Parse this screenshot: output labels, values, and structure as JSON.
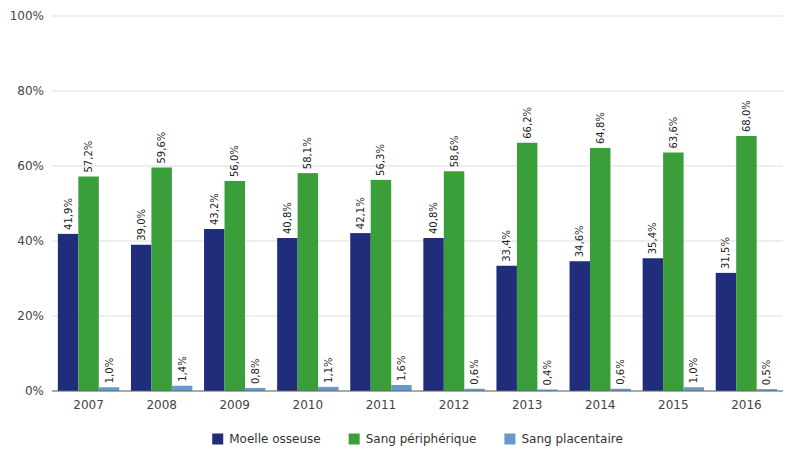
{
  "chart_data": {
    "type": "bar",
    "categories": [
      "2007",
      "2008",
      "2009",
      "2010",
      "2011",
      "2012",
      "2013",
      "2014",
      "2015",
      "2016"
    ],
    "series": [
      {
        "name": "Moelle osseuse",
        "color": "#1F2D7B",
        "values": [
          41.9,
          39.0,
          43.2,
          40.8,
          42.1,
          40.8,
          33.4,
          34.6,
          35.4,
          31.5
        ],
        "value_labels": [
          "41,9%",
          "39,0%",
          "43,2%",
          "40,8%",
          "42,1%",
          "40,8%",
          "33,4%",
          "34,6%",
          "35,4%",
          "31,5%"
        ]
      },
      {
        "name": "Sang périphérique",
        "color": "#3A9E3A",
        "values": [
          57.2,
          59.6,
          56.0,
          58.1,
          56.3,
          58.6,
          66.2,
          64.8,
          63.6,
          68.0
        ],
        "value_labels": [
          "57,2%",
          "59,6%",
          "56,0%",
          "58,1%",
          "56,3%",
          "58,6%",
          "66,2%",
          "64,8%",
          "63,6%",
          "68,0%"
        ]
      },
      {
        "name": "Sang placentaire",
        "color": "#6699CC",
        "values": [
          1.0,
          1.4,
          0.8,
          1.1,
          1.6,
          0.6,
          0.4,
          0.6,
          1.0,
          0.5
        ],
        "value_labels": [
          "1,0%",
          "1,4%",
          "0,8%",
          "1,1%",
          "1,6%",
          "0,6%",
          "0,4%",
          "0,6%",
          "1,0%",
          "0,5%"
        ]
      }
    ],
    "ylim": [
      0,
      100
    ],
    "yticks": [
      {
        "value": 0,
        "label": "0%"
      },
      {
        "value": 20,
        "label": "20%"
      },
      {
        "value": 40,
        "label": "40%"
      },
      {
        "value": 60,
        "label": "60%"
      },
      {
        "value": 80,
        "label": "80%"
      },
      {
        "value": 100,
        "label": "100%"
      }
    ],
    "grid": true,
    "legend": "bottom",
    "data_labels": true
  }
}
